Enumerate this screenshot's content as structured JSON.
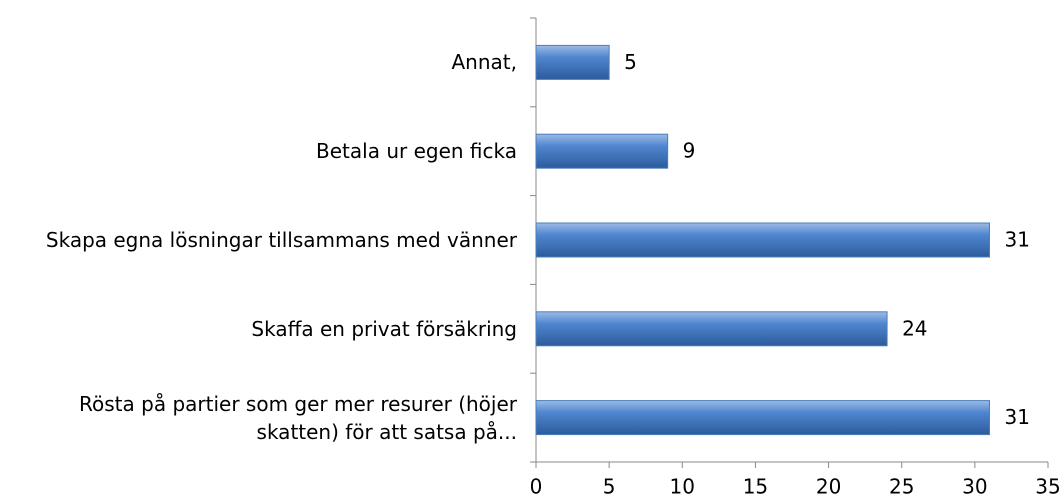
{
  "chart_data": {
    "type": "hbar",
    "categories": [
      "Annat,",
      "Betala ur egen ficka",
      "Skapa egna lösningar tillsammans med vänner",
      "Skaffa en privat försäkring",
      "Rösta på partier som ger mer resurer (höjer skatten) för att satsa på..."
    ],
    "values": [
      5,
      9,
      31,
      24,
      31
    ],
    "color": "#4a7ebb",
    "xlim": [
      0,
      35
    ],
    "xticks": [
      0,
      5,
      10,
      15,
      20,
      25,
      30,
      35
    ]
  }
}
